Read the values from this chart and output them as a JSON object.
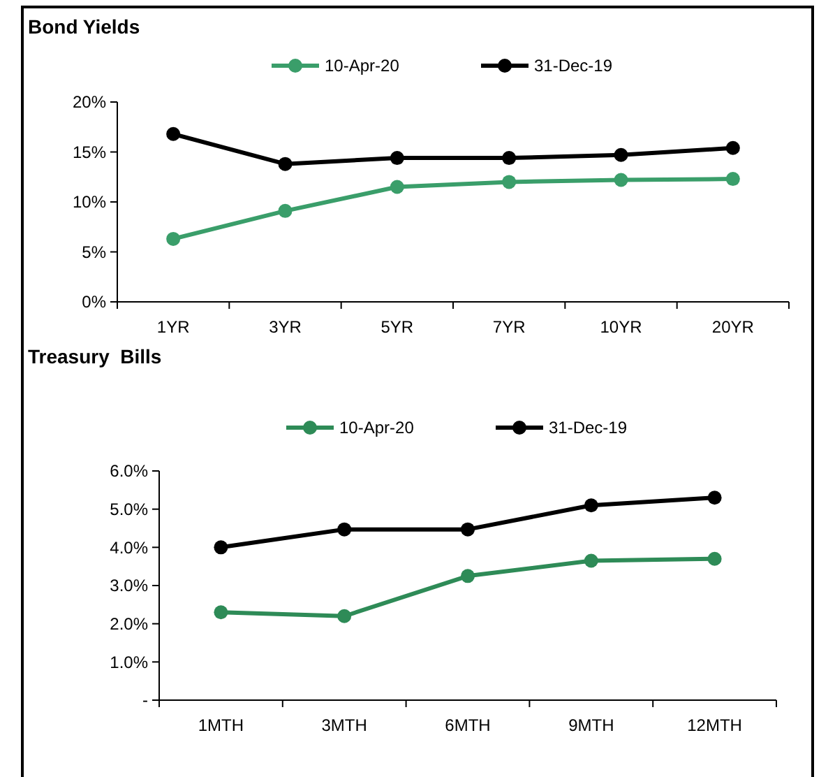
{
  "chart_data": [
    {
      "type": "line",
      "title": "Bond Yields",
      "categories": [
        "1YR",
        "3YR",
        "5YR",
        "7YR",
        "10YR",
        "20YR"
      ],
      "series": [
        {
          "name": "10-Apr-20",
          "color": "#3a9e6a",
          "values": [
            6.3,
            9.1,
            11.5,
            12.0,
            12.2,
            12.3
          ]
        },
        {
          "name": "31-Dec-19",
          "color": "#000000",
          "values": [
            16.8,
            13.8,
            14.4,
            14.4,
            14.7,
            15.4
          ]
        }
      ],
      "ylim": [
        0,
        20
      ],
      "yticks": [
        {
          "value": 0,
          "label": "0%"
        },
        {
          "value": 5,
          "label": "5%"
        },
        {
          "value": 10,
          "label": "10%"
        },
        {
          "value": 15,
          "label": "15%"
        },
        {
          "value": 20,
          "label": "20%"
        }
      ],
      "grid": false,
      "legend": "top",
      "marker": "circle",
      "line_style": "solid"
    },
    {
      "type": "line",
      "title": "Treasury  Bills",
      "categories": [
        "1MTH",
        "3MTH",
        "6MTH",
        "9MTH",
        "12MTH"
      ],
      "series": [
        {
          "name": "10-Apr-20",
          "color": "#2e8b57",
          "values": [
            2.3,
            2.2,
            3.25,
            3.65,
            3.7
          ]
        },
        {
          "name": "31-Dec-19",
          "color": "#000000",
          "values": [
            4.0,
            4.47,
            4.47,
            5.1,
            5.3
          ]
        }
      ],
      "ylim": [
        0,
        6
      ],
      "yticks": [
        {
          "value": 0,
          "label": "-"
        },
        {
          "value": 1,
          "label": "1.0%"
        },
        {
          "value": 2,
          "label": "2.0%"
        },
        {
          "value": 3,
          "label": "3.0%"
        },
        {
          "value": 4,
          "label": "4.0%"
        },
        {
          "value": 5,
          "label": "5.0%"
        },
        {
          "value": 6,
          "label": "6.0%"
        }
      ],
      "grid": false,
      "legend": "top",
      "marker": "circle",
      "line_style": "solid"
    }
  ]
}
